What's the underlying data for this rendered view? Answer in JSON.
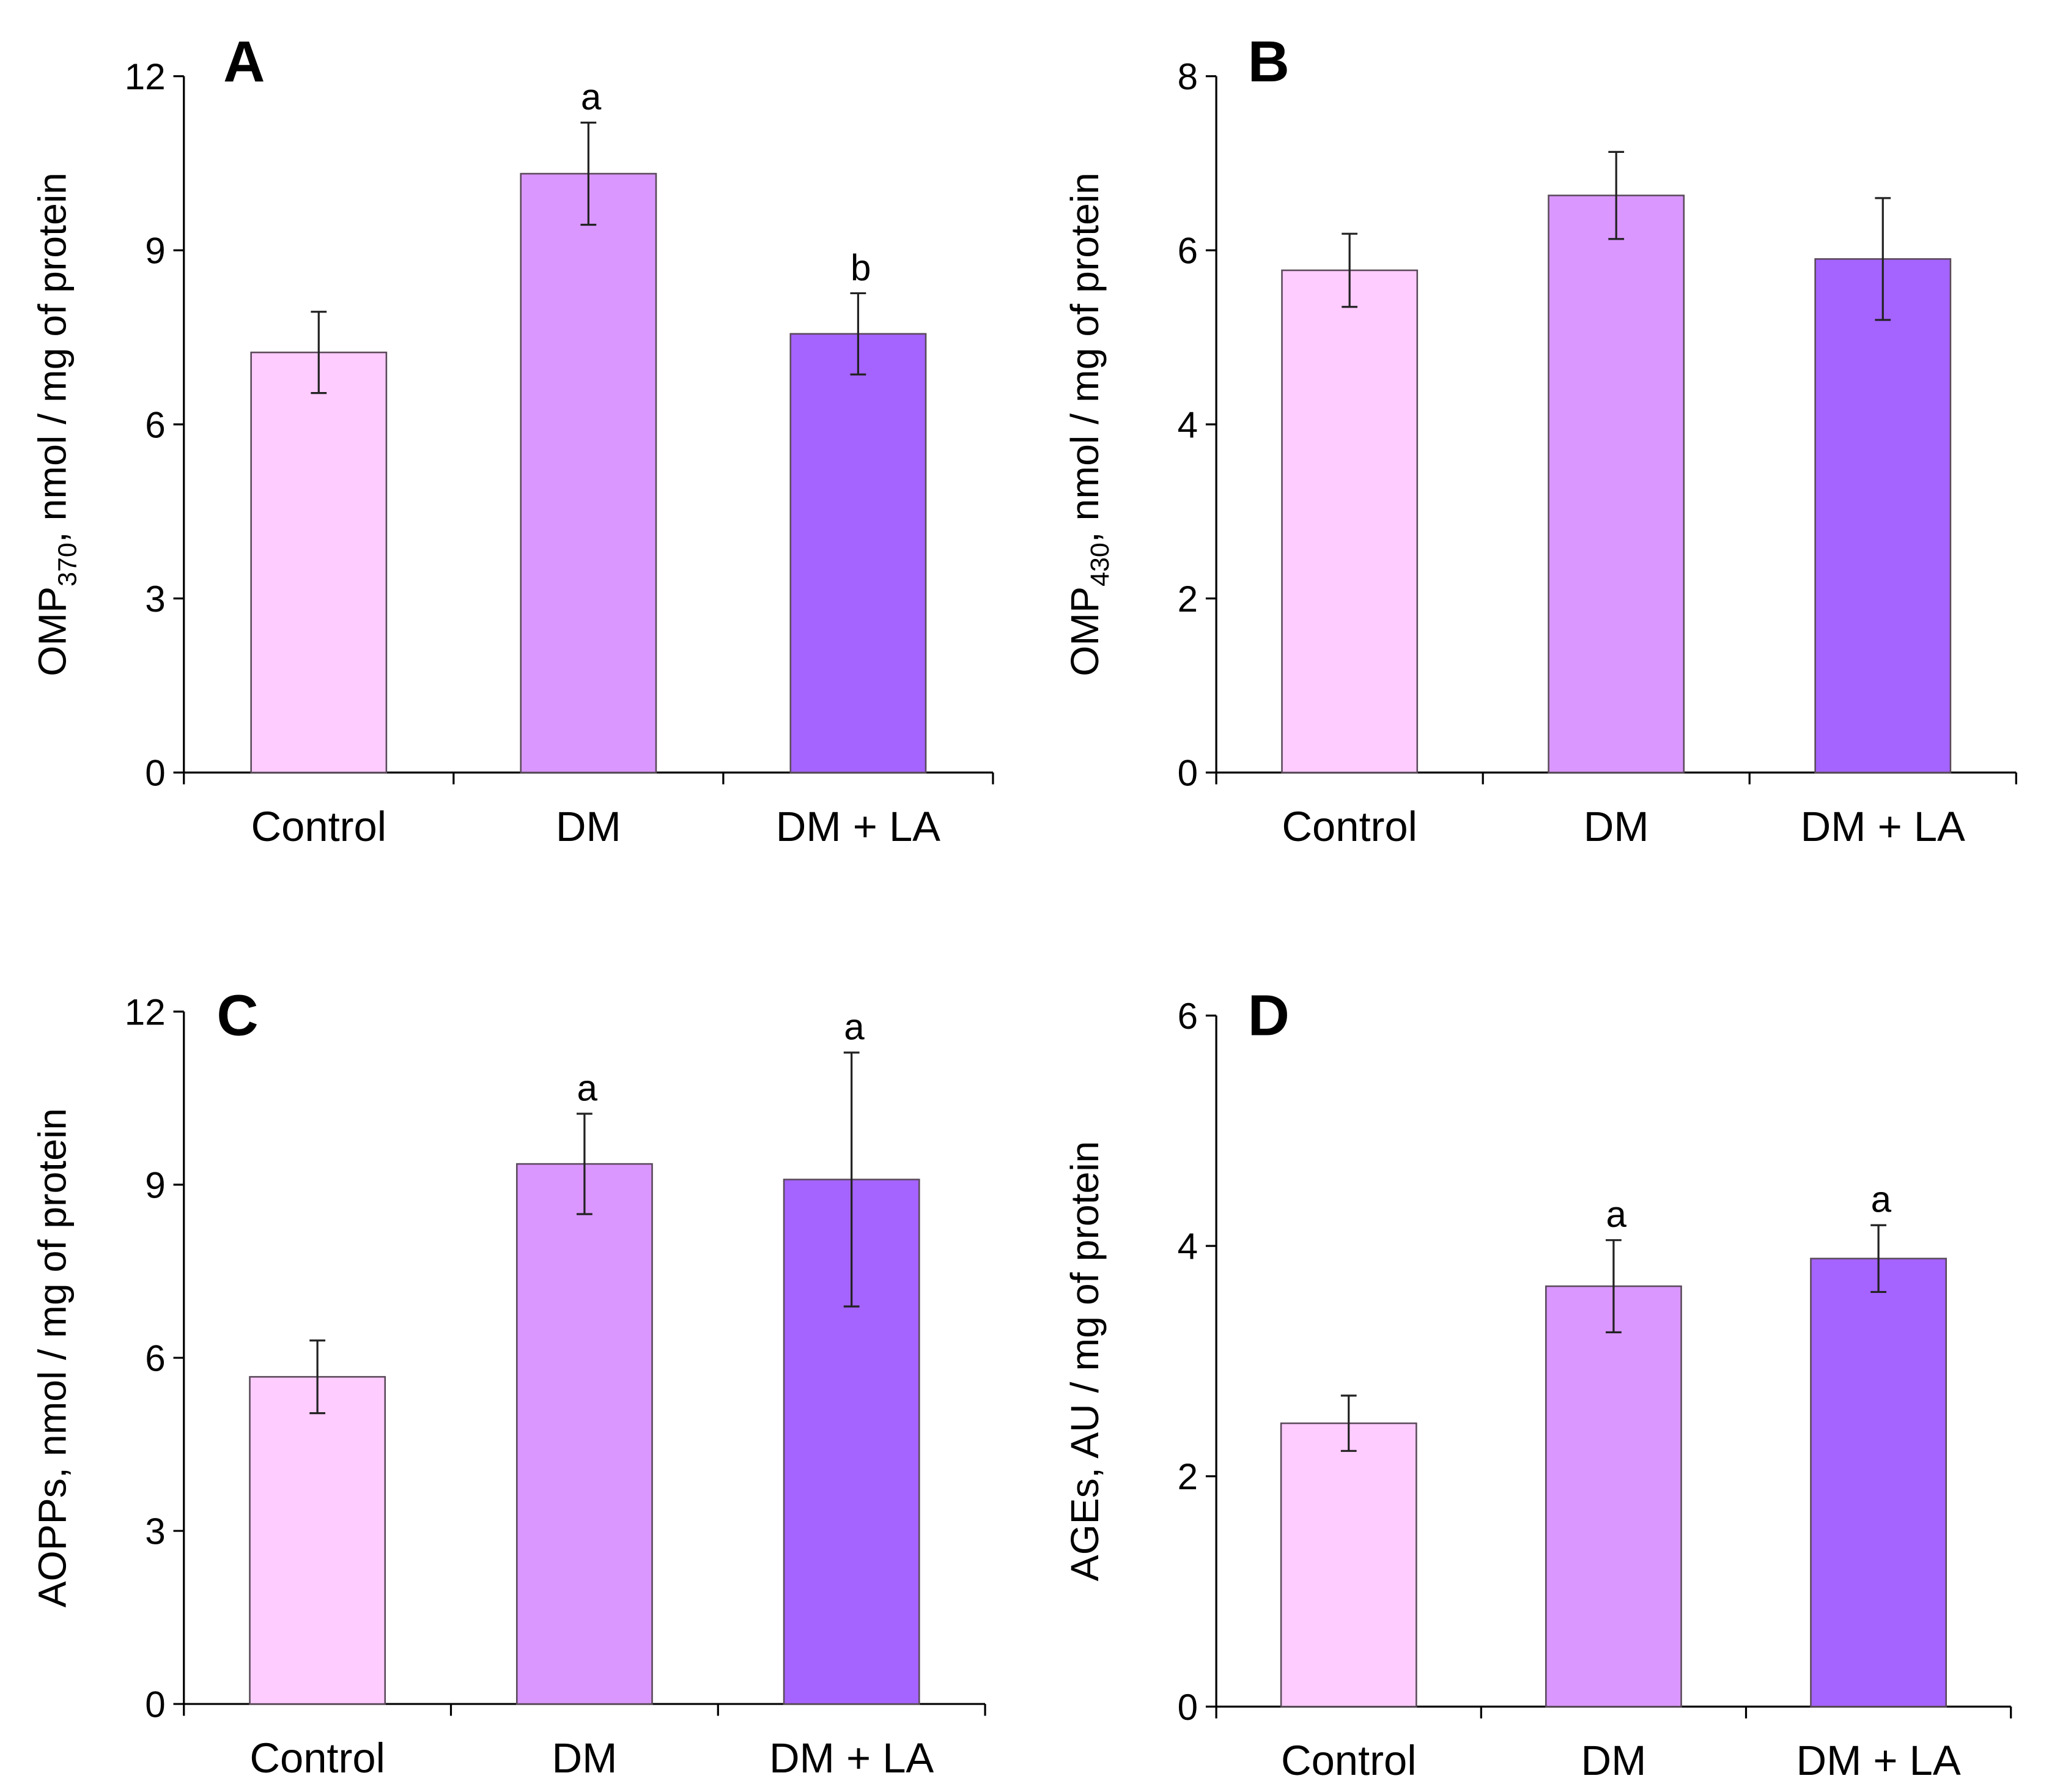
{
  "colors": {
    "Control": "#FFCCFF",
    "DM": "#DA97FF",
    "DM + LA": "#A563FF",
    "stroke": "#5a4a5a"
  },
  "chart_data": [
    {
      "type": "bar",
      "panel": "A",
      "categories": [
        "Control",
        "DM",
        "DM + LA"
      ],
      "values": [
        7.24,
        10.32,
        7.56
      ],
      "errors": [
        0.7,
        0.88,
        0.7
      ],
      "significance": [
        "",
        "a",
        "b"
      ],
      "ylabel_main": "OMP",
      "ylabel_sub": "370",
      "ylabel_rest": ", nmol / mg of protein",
      "ylim": [
        0,
        12
      ],
      "yticks": [
        0,
        3,
        6,
        9,
        12
      ]
    },
    {
      "type": "bar",
      "panel": "B",
      "categories": [
        "Control",
        "DM",
        "DM + LA"
      ],
      "values": [
        5.77,
        6.63,
        5.9
      ],
      "errors": [
        0.42,
        0.5,
        0.7
      ],
      "significance": [
        "",
        "",
        ""
      ],
      "ylabel_main": "OMP",
      "ylabel_sub": "430",
      "ylabel_rest": ", nmol / mg of protein",
      "ylim": [
        0,
        8
      ],
      "yticks": [
        0,
        2,
        4,
        6,
        8
      ]
    },
    {
      "type": "bar",
      "panel": "C",
      "categories": [
        "Control",
        "DM",
        "DM + LA"
      ],
      "values": [
        5.67,
        9.36,
        9.09
      ],
      "errors": [
        0.63,
        0.87,
        2.2
      ],
      "significance": [
        "",
        "a",
        "a"
      ],
      "ylabel_main": "AOPPs, nmol / mg of protein",
      "ylabel_sub": "",
      "ylabel_rest": "",
      "ylim": [
        0,
        12
      ],
      "yticks": [
        0,
        3,
        6,
        9,
        12
      ]
    },
    {
      "type": "bar",
      "panel": "D",
      "categories": [
        "Control",
        "DM",
        "DM + LA"
      ],
      "values": [
        2.46,
        3.65,
        3.89
      ],
      "errors": [
        0.24,
        0.4,
        0.29
      ],
      "significance": [
        "",
        "a",
        "a"
      ],
      "ylabel_main": "AGEs, AU / mg of protein",
      "ylabel_sub": "",
      "ylabel_rest": "",
      "ylim": [
        0,
        6
      ],
      "yticks": [
        0,
        2,
        4,
        6
      ]
    }
  ]
}
